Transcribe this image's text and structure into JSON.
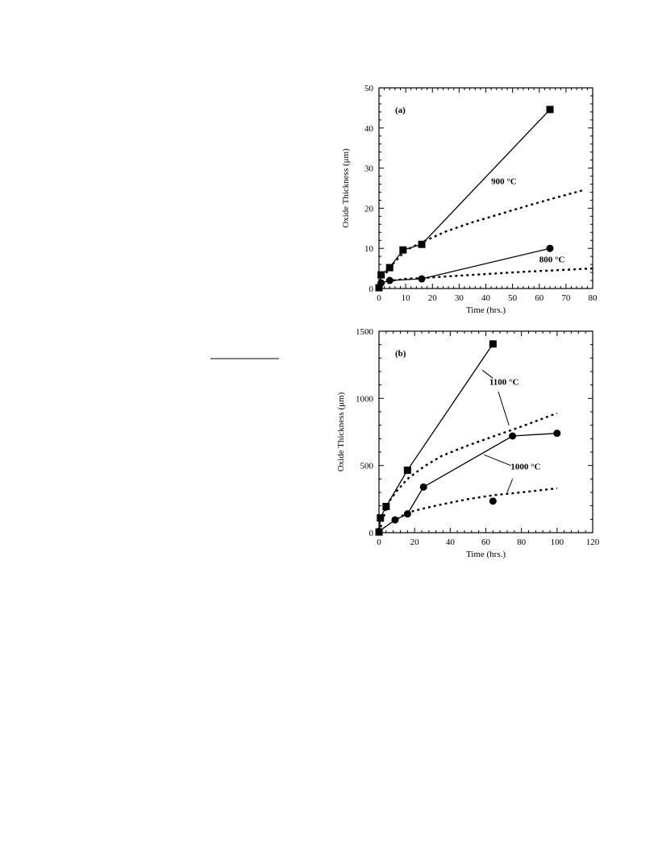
{
  "chart_data": [
    {
      "type": "line",
      "panel_label": "(a)",
      "xlabel": "Time (hrs.)",
      "ylabel": "Oxide Thickness (μm)",
      "xlim": [
        0,
        80
      ],
      "ylim": [
        0,
        50
      ],
      "xticks": [
        0,
        10,
        20,
        30,
        40,
        50,
        60,
        70,
        80
      ],
      "yticks": [
        0,
        10,
        20,
        30,
        40,
        50
      ],
      "grid": false,
      "legend": "none",
      "series": [
        {
          "marker": "square",
          "style": "solid",
          "x": [
            0,
            0.8,
            4,
            9,
            16,
            64
          ],
          "y": [
            0.2,
            3.4,
            5.2,
            9.6,
            11,
            44.6
          ]
        },
        {
          "marker": "circle",
          "style": "solid",
          "x": [
            0,
            0.8,
            4,
            16,
            64
          ],
          "y": [
            0.2,
            1.4,
            2,
            2.4,
            10
          ]
        },
        {
          "marker": "none",
          "style": "dotted",
          "x": [
            0,
            2,
            5,
            10,
            16,
            25,
            35,
            45,
            55,
            65,
            77
          ],
          "y": [
            0,
            3.2,
            6,
            9.5,
            11.5,
            14.2,
            16.5,
            18.5,
            20.5,
            22.4,
            24.6
          ]
        },
        {
          "marker": "none",
          "style": "dotted",
          "x": [
            0,
            2,
            5,
            10,
            16,
            25,
            35,
            45,
            55,
            65,
            80
          ],
          "y": [
            0,
            1.4,
            2,
            2.4,
            2.6,
            3,
            3.4,
            3.8,
            4.2,
            4.5,
            5
          ]
        }
      ],
      "annotations": [
        {
          "text": "900 °C",
          "x": 42,
          "y": 26
        },
        {
          "text": "800 °C",
          "x": 60,
          "y": 6.5
        }
      ]
    },
    {
      "type": "line",
      "panel_label": "(b)",
      "xlabel": "Time (hrs.)",
      "ylabel": "Oxide Thickness (μm)",
      "xlim": [
        0,
        120
      ],
      "ylim": [
        0,
        1500
      ],
      "xticks": [
        0,
        20,
        40,
        60,
        80,
        100,
        120
      ],
      "yticks": [
        0,
        500,
        1000,
        1500
      ],
      "grid": false,
      "legend": "none",
      "series": [
        {
          "marker": "square",
          "style": "solid",
          "x": [
            0,
            0.8,
            4,
            16,
            64
          ],
          "y": [
            5,
            110,
            195,
            465,
            1405
          ]
        },
        {
          "marker": "circle",
          "style": "solid",
          "x": [
            0,
            9,
            16,
            25,
            75,
            100
          ],
          "y": [
            10,
            95,
            140,
            340,
            720,
            740
          ]
        },
        {
          "marker": "circle",
          "style": "none",
          "x": [
            64
          ],
          "y": [
            235
          ]
        },
        {
          "marker": "none",
          "style": "dotted",
          "x": [
            0,
            5,
            10,
            16,
            25,
            35,
            50,
            65,
            80,
            100
          ],
          "y": [
            0,
            220,
            310,
            400,
            490,
            570,
            650,
            720,
            790,
            890
          ]
        },
        {
          "marker": "none",
          "style": "dotted",
          "x": [
            10,
            16,
            25,
            35,
            50,
            65,
            80,
            100
          ],
          "y": [
            100,
            150,
            180,
            210,
            250,
            280,
            300,
            330
          ]
        }
      ],
      "annotations": [
        {
          "text": "1100 °C",
          "x": 62,
          "y": 1100
        },
        {
          "text": "1000 °C",
          "x": 74,
          "y": 470
        }
      ],
      "leaders": [
        {
          "x": [
            58,
            64
          ],
          "y": [
            1210,
            1150
          ]
        },
        {
          "x": [
            67,
            73
          ],
          "y": [
            1050,
            800
          ]
        },
        {
          "x": [
            59,
            74
          ],
          "y": [
            580,
            500
          ]
        },
        {
          "x": [
            75,
            72
          ],
          "y": [
            400,
            300
          ]
        }
      ]
    }
  ]
}
